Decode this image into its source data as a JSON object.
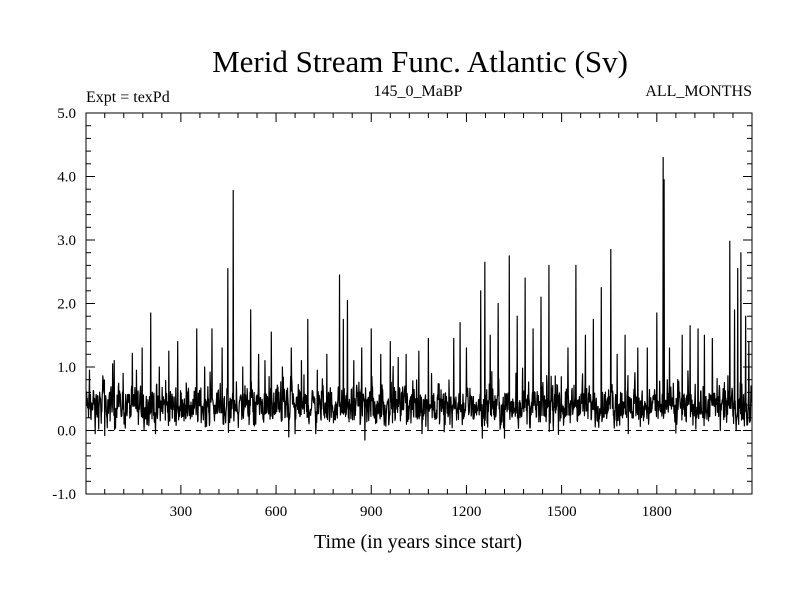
{
  "chart_data": {
    "type": "line",
    "title": "Merid Stream Func. Atlantic (Sv)",
    "header_left": "Expt = texPd",
    "header_center": "145_0_MaBP",
    "header_right": "ALL_MONTHS",
    "xlabel": "Time (in years since start)",
    "ylabel": "",
    "xlim": [
      1,
      2100
    ],
    "ylim": [
      -1.0,
      5.0
    ],
    "x_ticks": [
      300,
      600,
      900,
      1200,
      1500,
      1800
    ],
    "y_ticks": [
      -1.0,
      0.0,
      1.0,
      2.0,
      3.0,
      4.0,
      5.0
    ],
    "y_tick_labels": [
      "-1.0",
      "0.0",
      "1.0",
      "2.0",
      "3.0",
      "4.0",
      "5.0"
    ],
    "reference_line": {
      "y": 0.0,
      "style": "dashed"
    },
    "grid": false,
    "line_color": "#000000",
    "baseline_mean": 0.38,
    "spikes": [
      [
        12,
        0.95
      ],
      [
        30,
        0.85
      ],
      [
        55,
        0.8
      ],
      [
        85,
        1.05
      ],
      [
        90,
        1.1
      ],
      [
        118,
        0.9
      ],
      [
        160,
        0.95
      ],
      [
        178,
        1.3
      ],
      [
        205,
        1.85
      ],
      [
        232,
        1.0
      ],
      [
        262,
        1.25
      ],
      [
        290,
        1.4
      ],
      [
        350,
        1.6
      ],
      [
        375,
        1.0
      ],
      [
        398,
        1.6
      ],
      [
        430,
        1.3
      ],
      [
        448,
        2.55
      ],
      [
        465,
        3.78
      ],
      [
        495,
        1.0
      ],
      [
        520,
        1.9
      ],
      [
        545,
        1.2
      ],
      [
        565,
        1.1
      ],
      [
        585,
        1.55
      ],
      [
        620,
        1.0
      ],
      [
        648,
        1.3
      ],
      [
        680,
        1.1
      ],
      [
        700,
        1.75
      ],
      [
        730,
        0.95
      ],
      [
        760,
        1.2
      ],
      [
        800,
        2.45
      ],
      [
        812,
        1.75
      ],
      [
        825,
        2.05
      ],
      [
        845,
        1.1
      ],
      [
        870,
        1.3
      ],
      [
        900,
        1.6
      ],
      [
        930,
        1.2
      ],
      [
        960,
        1.4
      ],
      [
        985,
        1.15
      ],
      [
        1010,
        1.2
      ],
      [
        1050,
        1.25
      ],
      [
        1080,
        1.45
      ],
      [
        1130,
        1.2
      ],
      [
        1160,
        1.45
      ],
      [
        1180,
        1.7
      ],
      [
        1200,
        1.3
      ],
      [
        1245,
        2.2
      ],
      [
        1258,
        2.65
      ],
      [
        1275,
        1.5
      ],
      [
        1300,
        2.0
      ],
      [
        1335,
        2.75
      ],
      [
        1360,
        1.8
      ],
      [
        1385,
        2.4
      ],
      [
        1410,
        1.6
      ],
      [
        1435,
        2.1
      ],
      [
        1460,
        2.6
      ],
      [
        1490,
        1.4
      ],
      [
        1520,
        1.3
      ],
      [
        1545,
        2.6
      ],
      [
        1575,
        1.5
      ],
      [
        1600,
        1.75
      ],
      [
        1625,
        2.25
      ],
      [
        1655,
        2.85
      ],
      [
        1675,
        1.2
      ],
      [
        1700,
        1.5
      ],
      [
        1740,
        1.3
      ],
      [
        1770,
        1.3
      ],
      [
        1800,
        1.85
      ],
      [
        1820,
        4.3
      ],
      [
        1823,
        3.95
      ],
      [
        1840,
        1.3
      ],
      [
        1860,
        1.8
      ],
      [
        1880,
        1.5
      ],
      [
        1905,
        1.65
      ],
      [
        1930,
        1.6
      ],
      [
        1950,
        1.5
      ],
      [
        1975,
        1.45
      ],
      [
        2000,
        1.3
      ],
      [
        2030,
        2.98
      ],
      [
        2045,
        1.9
      ],
      [
        2055,
        2.55
      ],
      [
        2065,
        2.8
      ],
      [
        2080,
        1.8
      ],
      [
        2090,
        1.4
      ]
    ],
    "dips": [
      [
        30,
        -0.05
      ],
      [
        60,
        -0.08
      ],
      [
        220,
        -0.05
      ],
      [
        450,
        -0.03
      ],
      [
        640,
        -0.1
      ],
      [
        660,
        -0.05
      ],
      [
        725,
        -0.05
      ],
      [
        880,
        -0.15
      ],
      [
        1060,
        -0.05
      ],
      [
        1130,
        -0.02
      ],
      [
        1250,
        -0.12
      ],
      [
        1320,
        -0.12
      ],
      [
        1490,
        -0.06
      ],
      [
        1710,
        -0.05
      ],
      [
        1860,
        -0.04
      ],
      [
        2000,
        0.0
      ]
    ]
  }
}
